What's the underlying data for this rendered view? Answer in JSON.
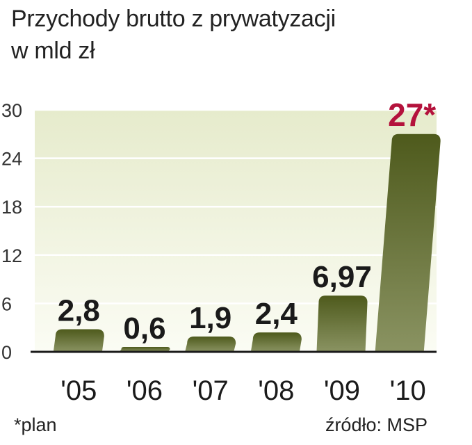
{
  "title_line1": "Przychody brutto z prywatyzacji",
  "title_line2": "w mld zł",
  "footnote": "*plan",
  "source": "źródło: MSP",
  "colors": {
    "bar_dark": "#4e5a1c",
    "bar_light": "#8a9362",
    "highlight_label": "#b4123c",
    "label": "#1a1a1a",
    "bg_top": "#e6ebcc",
    "bg_bottom": "#fbfcf4"
  },
  "chart_data": {
    "type": "bar",
    "title": "Przychody brutto z prywatyzacji",
    "ylabel": "w mld zł",
    "categories": [
      "'05",
      "'06",
      "'07",
      "'08",
      "'09",
      "'10"
    ],
    "values": [
      2.8,
      0.6,
      1.9,
      2.4,
      6.97,
      27
    ],
    "value_labels": [
      "2,8",
      "0,6",
      "1,9",
      "2,4",
      "6,97",
      "27*"
    ],
    "yticks": [
      0,
      6,
      12,
      18,
      24,
      30
    ],
    "ylim": [
      0,
      30
    ],
    "grid": true,
    "highlight_index": 5
  }
}
